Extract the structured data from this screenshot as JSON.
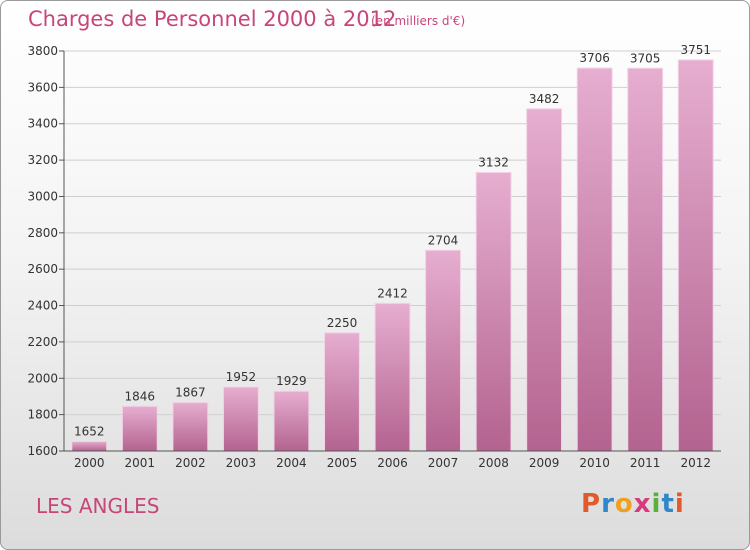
{
  "title": "Charges de Personnel 2000 à 2012",
  "subtitle": "(en milliers d'€)",
  "commune": "LES ANGLES",
  "logo": {
    "letters": [
      "P",
      "r",
      "o",
      "x",
      "i",
      "t",
      "i"
    ],
    "colors": [
      "#e05a2b",
      "#2f86c9",
      "#f0a020",
      "#d83a7e",
      "#5ab03c",
      "#2f86c9",
      "#e05a2b"
    ]
  },
  "colors": {
    "bar": "#d48bb4",
    "bar_light": "#e6aed0",
    "bar_dark": "#b3638f",
    "text": "#c8457a",
    "axis": "#555555"
  },
  "chart_data": {
    "type": "bar",
    "categories": [
      "2000",
      "2001",
      "2002",
      "2003",
      "2004",
      "2005",
      "2006",
      "2007",
      "2008",
      "2009",
      "2010",
      "2011",
      "2012"
    ],
    "values": [
      1652,
      1846,
      1867,
      1952,
      1929,
      2250,
      2412,
      2704,
      3132,
      3482,
      3706,
      3705,
      3751
    ],
    "ylim": [
      1600,
      3800
    ],
    "yticks": [
      1600,
      1800,
      2000,
      2200,
      2400,
      2600,
      2800,
      3000,
      3200,
      3400,
      3600,
      3800
    ],
    "grid": true,
    "data_labels": true
  }
}
